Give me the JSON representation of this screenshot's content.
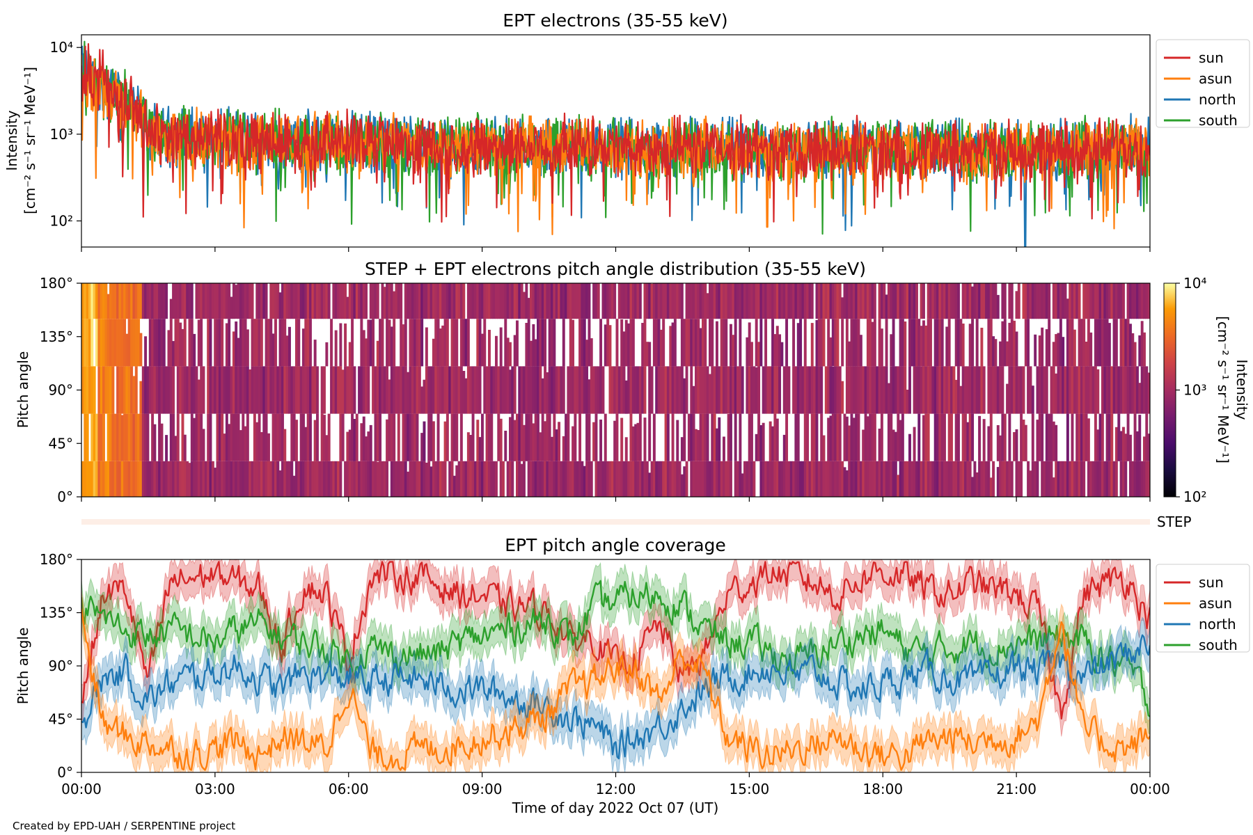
{
  "footer": "Created by EPD-UAH / SERPENTINE project",
  "chart_data": [
    {
      "id": "intensity",
      "type": "line",
      "title": "EPT electrons (35-55 keV)",
      "ylabel_line1": "Intensity",
      "ylabel_line2": "[cm⁻² s⁻¹ sr⁻¹ MeV⁻¹]",
      "yscale": "log",
      "ylim": [
        50,
        14000
      ],
      "yticks": [
        {
          "v": 100,
          "label": "10²"
        },
        {
          "v": 1000,
          "label": "10³"
        },
        {
          "v": 10000,
          "label": "10⁴"
        }
      ],
      "xlim_hours": [
        0,
        24
      ],
      "legend_placement": "outside-right-top",
      "legend": [
        "sun",
        "asun",
        "north",
        "south"
      ],
      "series": [
        {
          "name": "north",
          "color": "#1f77b4",
          "x": [
            0,
            0.1,
            0.3,
            0.6,
            0.9,
            1.2,
            1.5,
            2,
            3,
            4,
            6,
            8,
            10,
            12,
            14,
            15.5,
            17,
            19,
            21,
            22,
            23,
            24
          ],
          "y": [
            5000,
            4700,
            3700,
            2900,
            2400,
            1800,
            1050,
            950,
            900,
            850,
            800,
            760,
            740,
            700,
            690,
            680,
            680,
            660,
            650,
            640,
            700,
            720
          ]
        },
        {
          "name": "south",
          "color": "#2ca02c",
          "x": [
            0,
            0.1,
            0.3,
            0.6,
            0.9,
            1.2,
            1.5,
            2,
            3,
            4,
            6,
            8,
            10,
            12,
            14,
            15.5,
            17,
            19,
            21,
            22,
            23,
            24
          ],
          "y": [
            6500,
            6000,
            4200,
            3200,
            2600,
            1900,
            1100,
            960,
            900,
            860,
            800,
            760,
            740,
            700,
            690,
            680,
            680,
            660,
            650,
            640,
            700,
            760
          ]
        },
        {
          "name": "asun",
          "color": "#ff7f0e",
          "x": [
            0,
            0.1,
            0.3,
            0.6,
            0.9,
            1.2,
            1.5,
            2,
            3,
            4,
            6,
            8,
            10,
            12,
            14,
            15.5,
            17,
            19,
            21,
            22,
            23,
            24
          ],
          "y": [
            4500,
            4300,
            3400,
            2700,
            2200,
            1700,
            1000,
            920,
            880,
            840,
            790,
            750,
            730,
            700,
            690,
            680,
            680,
            660,
            650,
            640,
            690,
            720
          ]
        },
        {
          "name": "sun",
          "color": "#d62728",
          "x": [
            0,
            0.1,
            0.3,
            0.4,
            0.6,
            0.9,
            1.2,
            1.5,
            2,
            3,
            4,
            6,
            8,
            10,
            12,
            14,
            15.5,
            17,
            19,
            21,
            22,
            23,
            24
          ],
          "y": [
            5500,
            5000,
            4000,
            8500,
            3000,
            2500,
            1900,
            1050,
            950,
            900,
            860,
            800,
            760,
            740,
            700,
            690,
            680,
            680,
            660,
            650,
            640,
            700,
            740
          ]
        }
      ],
      "dips": [
        {
          "series": "north",
          "x": 21.2,
          "y": 50
        },
        {
          "series": "asun",
          "x": 15.4,
          "y": 85
        }
      ]
    },
    {
      "id": "pad",
      "type": "heatmap",
      "title": "STEP + EPT electrons pitch angle distribution (35-55 keV)",
      "ylabel": "Pitch angle",
      "ylim": [
        0,
        180
      ],
      "yticks": [
        {
          "v": 0,
          "label": "0°"
        },
        {
          "v": 45,
          "label": "45°"
        },
        {
          "v": 90,
          "label": "90°"
        },
        {
          "v": 135,
          "label": "135°"
        },
        {
          "v": 180,
          "label": "180°"
        }
      ],
      "xlim_hours": [
        0,
        24
      ],
      "colorscale": "inferno",
      "colorbar": {
        "label_line1": "Intensity",
        "label_line2": "[cm⁻² s⁻¹ sr⁻¹ MeV⁻¹]",
        "range": [
          100,
          10000
        ],
        "ticks": [
          {
            "v": 100,
            "label": "10²"
          },
          {
            "v": 1000,
            "label": "10³"
          },
          {
            "v": 10000,
            "label": "10⁴"
          }
        ]
      },
      "step_label": "STEP"
    },
    {
      "id": "coverage",
      "type": "line",
      "title": "EPT pitch angle coverage",
      "ylabel": "Pitch angle",
      "xlabel": "Time of day 2022 Oct 07 (UT)",
      "ylim": [
        0,
        180
      ],
      "yticks": [
        {
          "v": 0,
          "label": "0°"
        },
        {
          "v": 45,
          "label": "45°"
        },
        {
          "v": 90,
          "label": "90°"
        },
        {
          "v": 135,
          "label": "135°"
        },
        {
          "v": 180,
          "label": "180°"
        }
      ],
      "xlim_hours": [
        0,
        24
      ],
      "xticks": [
        {
          "v": 0,
          "label": "00:00"
        },
        {
          "v": 3,
          "label": "03:00"
        },
        {
          "v": 6,
          "label": "06:00"
        },
        {
          "v": 9,
          "label": "09:00"
        },
        {
          "v": 12,
          "label": "12:00"
        },
        {
          "v": 15,
          "label": "15:00"
        },
        {
          "v": 18,
          "label": "18:00"
        },
        {
          "v": 21,
          "label": "21:00"
        },
        {
          "v": 24,
          "label": "00:00"
        }
      ],
      "legend_placement": "outside-right-top",
      "legend": [
        "sun",
        "asun",
        "north",
        "south"
      ],
      "band_halfwidth_deg": 15,
      "series": [
        {
          "name": "sun",
          "color": "#d62728",
          "x": [
            0,
            0.5,
            1,
            1.5,
            2,
            2.5,
            3,
            3.5,
            4,
            4.5,
            5,
            5.5,
            6,
            6.5,
            7,
            7.5,
            8,
            8.5,
            9,
            9.5,
            10,
            10.5,
            11,
            11.5,
            12,
            12.5,
            13,
            13.5,
            14,
            14.5,
            15,
            15.5,
            16,
            16.5,
            17,
            17.5,
            18,
            18.5,
            19,
            19.5,
            20,
            20.5,
            21,
            21.5,
            22,
            22.5,
            23,
            23.5,
            24
          ],
          "y": [
            60,
            150,
            155,
            75,
            160,
            165,
            168,
            160,
            155,
            105,
            160,
            150,
            95,
            165,
            168,
            165,
            160,
            150,
            150,
            140,
            140,
            135,
            110,
            115,
            90,
            100,
            125,
            80,
            100,
            150,
            160,
            170,
            165,
            160,
            150,
            165,
            170,
            165,
            155,
            150,
            160,
            155,
            150,
            135,
            50,
            150,
            160,
            165,
            130
          ]
        },
        {
          "name": "south",
          "color": "#2ca02c",
          "x": [
            0,
            0.5,
            1,
            1.5,
            2,
            2.5,
            3,
            3.5,
            4,
            4.5,
            5,
            5.5,
            6,
            6.5,
            7,
            7.5,
            8,
            8.5,
            9,
            9.5,
            10,
            10.5,
            11,
            11.5,
            12,
            12.5,
            13,
            13.5,
            14,
            14.5,
            15,
            15.5,
            16,
            16.5,
            17,
            17.5,
            18,
            18.5,
            19,
            19.5,
            20,
            20.5,
            21,
            21.5,
            22,
            22.5,
            23,
            23.5,
            24
          ],
          "y": [
            140,
            130,
            120,
            115,
            120,
            115,
            110,
            120,
            125,
            115,
            110,
            105,
            95,
            105,
            100,
            100,
            100,
            110,
            115,
            120,
            125,
            130,
            110,
            140,
            145,
            150,
            150,
            140,
            120,
            110,
            110,
            100,
            95,
            100,
            110,
            115,
            120,
            105,
            100,
            105,
            110,
            105,
            110,
            110,
            115,
            110,
            95,
            90,
            60
          ]
        },
        {
          "name": "north",
          "color": "#1f77b4",
          "x": [
            0,
            0.5,
            1,
            1.5,
            2,
            2.5,
            3,
            3.5,
            4,
            4.5,
            5,
            5.5,
            6,
            6.5,
            7,
            7.5,
            8,
            8.5,
            9,
            9.5,
            10,
            10.5,
            11,
            11.5,
            12,
            12.5,
            13,
            13.5,
            14,
            14.5,
            15,
            15.5,
            16,
            16.5,
            17,
            17.5,
            18,
            18.5,
            19,
            19.5,
            20,
            20.5,
            21,
            21.5,
            22,
            22.5,
            23,
            23.5,
            24
          ],
          "y": [
            40,
            80,
            85,
            60,
            75,
            80,
            85,
            90,
            80,
            70,
            85,
            80,
            80,
            75,
            80,
            78,
            75,
            70,
            70,
            65,
            60,
            55,
            45,
            40,
            20,
            30,
            40,
            55,
            70,
            80,
            85,
            90,
            80,
            85,
            75,
            70,
            75,
            80,
            85,
            80,
            75,
            80,
            90,
            85,
            95,
            80,
            90,
            100,
            110
          ]
        },
        {
          "name": "asun",
          "color": "#ff7f0e",
          "x": [
            0,
            0.5,
            1,
            1.5,
            2,
            2.5,
            3,
            3.5,
            4,
            4.5,
            5,
            5.5,
            6,
            6.5,
            7,
            7.5,
            8,
            8.5,
            9,
            9.5,
            10,
            10.5,
            11,
            11.5,
            12,
            12.5,
            13,
            13.5,
            14,
            14.5,
            15,
            15.5,
            16,
            16.5,
            17,
            17.5,
            18,
            18.5,
            19,
            19.5,
            20,
            20.5,
            21,
            21.5,
            22,
            22.5,
            23,
            23.5,
            24
          ],
          "y": [
            130,
            40,
            30,
            25,
            20,
            15,
            20,
            25,
            15,
            30,
            25,
            20,
            75,
            15,
            15,
            18,
            20,
            25,
            30,
            35,
            40,
            50,
            70,
            75,
            90,
            85,
            60,
            100,
            85,
            30,
            20,
            15,
            20,
            25,
            30,
            20,
            15,
            15,
            25,
            30,
            25,
            30,
            30,
            45,
            130,
            35,
            25,
            20,
            30
          ]
        }
      ]
    }
  ]
}
